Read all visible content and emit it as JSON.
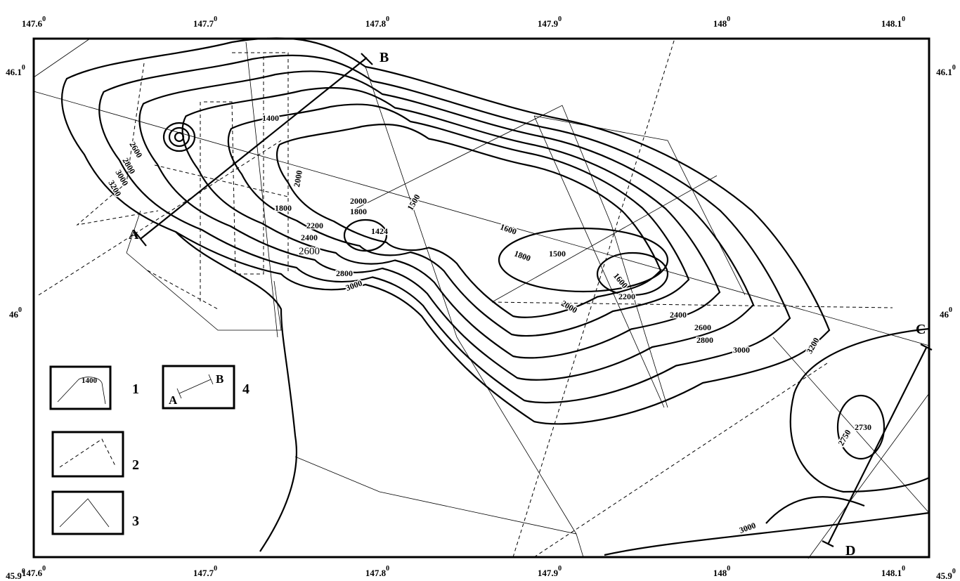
{
  "axes": {
    "top": [
      {
        "text": "147.6",
        "sup": "0"
      },
      {
        "text": "147.7",
        "sup": "0"
      },
      {
        "text": "147.8",
        "sup": "0"
      },
      {
        "text": "147.9",
        "sup": "0"
      },
      {
        "text": "148",
        "sup": "0"
      },
      {
        "text": "148.1",
        "sup": "0"
      }
    ],
    "bottom": [
      {
        "text": "147.6",
        "sup": "0"
      },
      {
        "text": "147.7",
        "sup": "0"
      },
      {
        "text": "147.8",
        "sup": "0"
      },
      {
        "text": "147.9",
        "sup": "0"
      },
      {
        "text": "148",
        "sup": "0"
      },
      {
        "text": "148.1",
        "sup": "0"
      }
    ],
    "left": [
      {
        "text": "46.1",
        "sup": "0"
      },
      {
        "text": "46",
        "sup": "0"
      },
      {
        "text": "45.9",
        "sup": "0"
      }
    ],
    "right": [
      {
        "text": "46.1",
        "sup": "0"
      },
      {
        "text": "46",
        "sup": "0"
      },
      {
        "text": "45.9",
        "sup": "0"
      }
    ]
  },
  "contour_labels": [
    1400,
    2600,
    2800,
    3000,
    3200,
    1800,
    2000,
    2200,
    2400,
    2600,
    2000,
    1800,
    1424,
    1500,
    2800,
    3000,
    1600,
    1800,
    1500,
    1600,
    2000,
    2200,
    2400,
    2600,
    2800,
    3000,
    3200,
    2730,
    2750,
    3000
  ],
  "profile_points": [
    "A",
    "B",
    "C",
    "D"
  ],
  "legend": {
    "items": [
      "1",
      "2",
      "3",
      "4"
    ],
    "sample_label": "1400",
    "sample_a": "A",
    "sample_b": "B"
  }
}
